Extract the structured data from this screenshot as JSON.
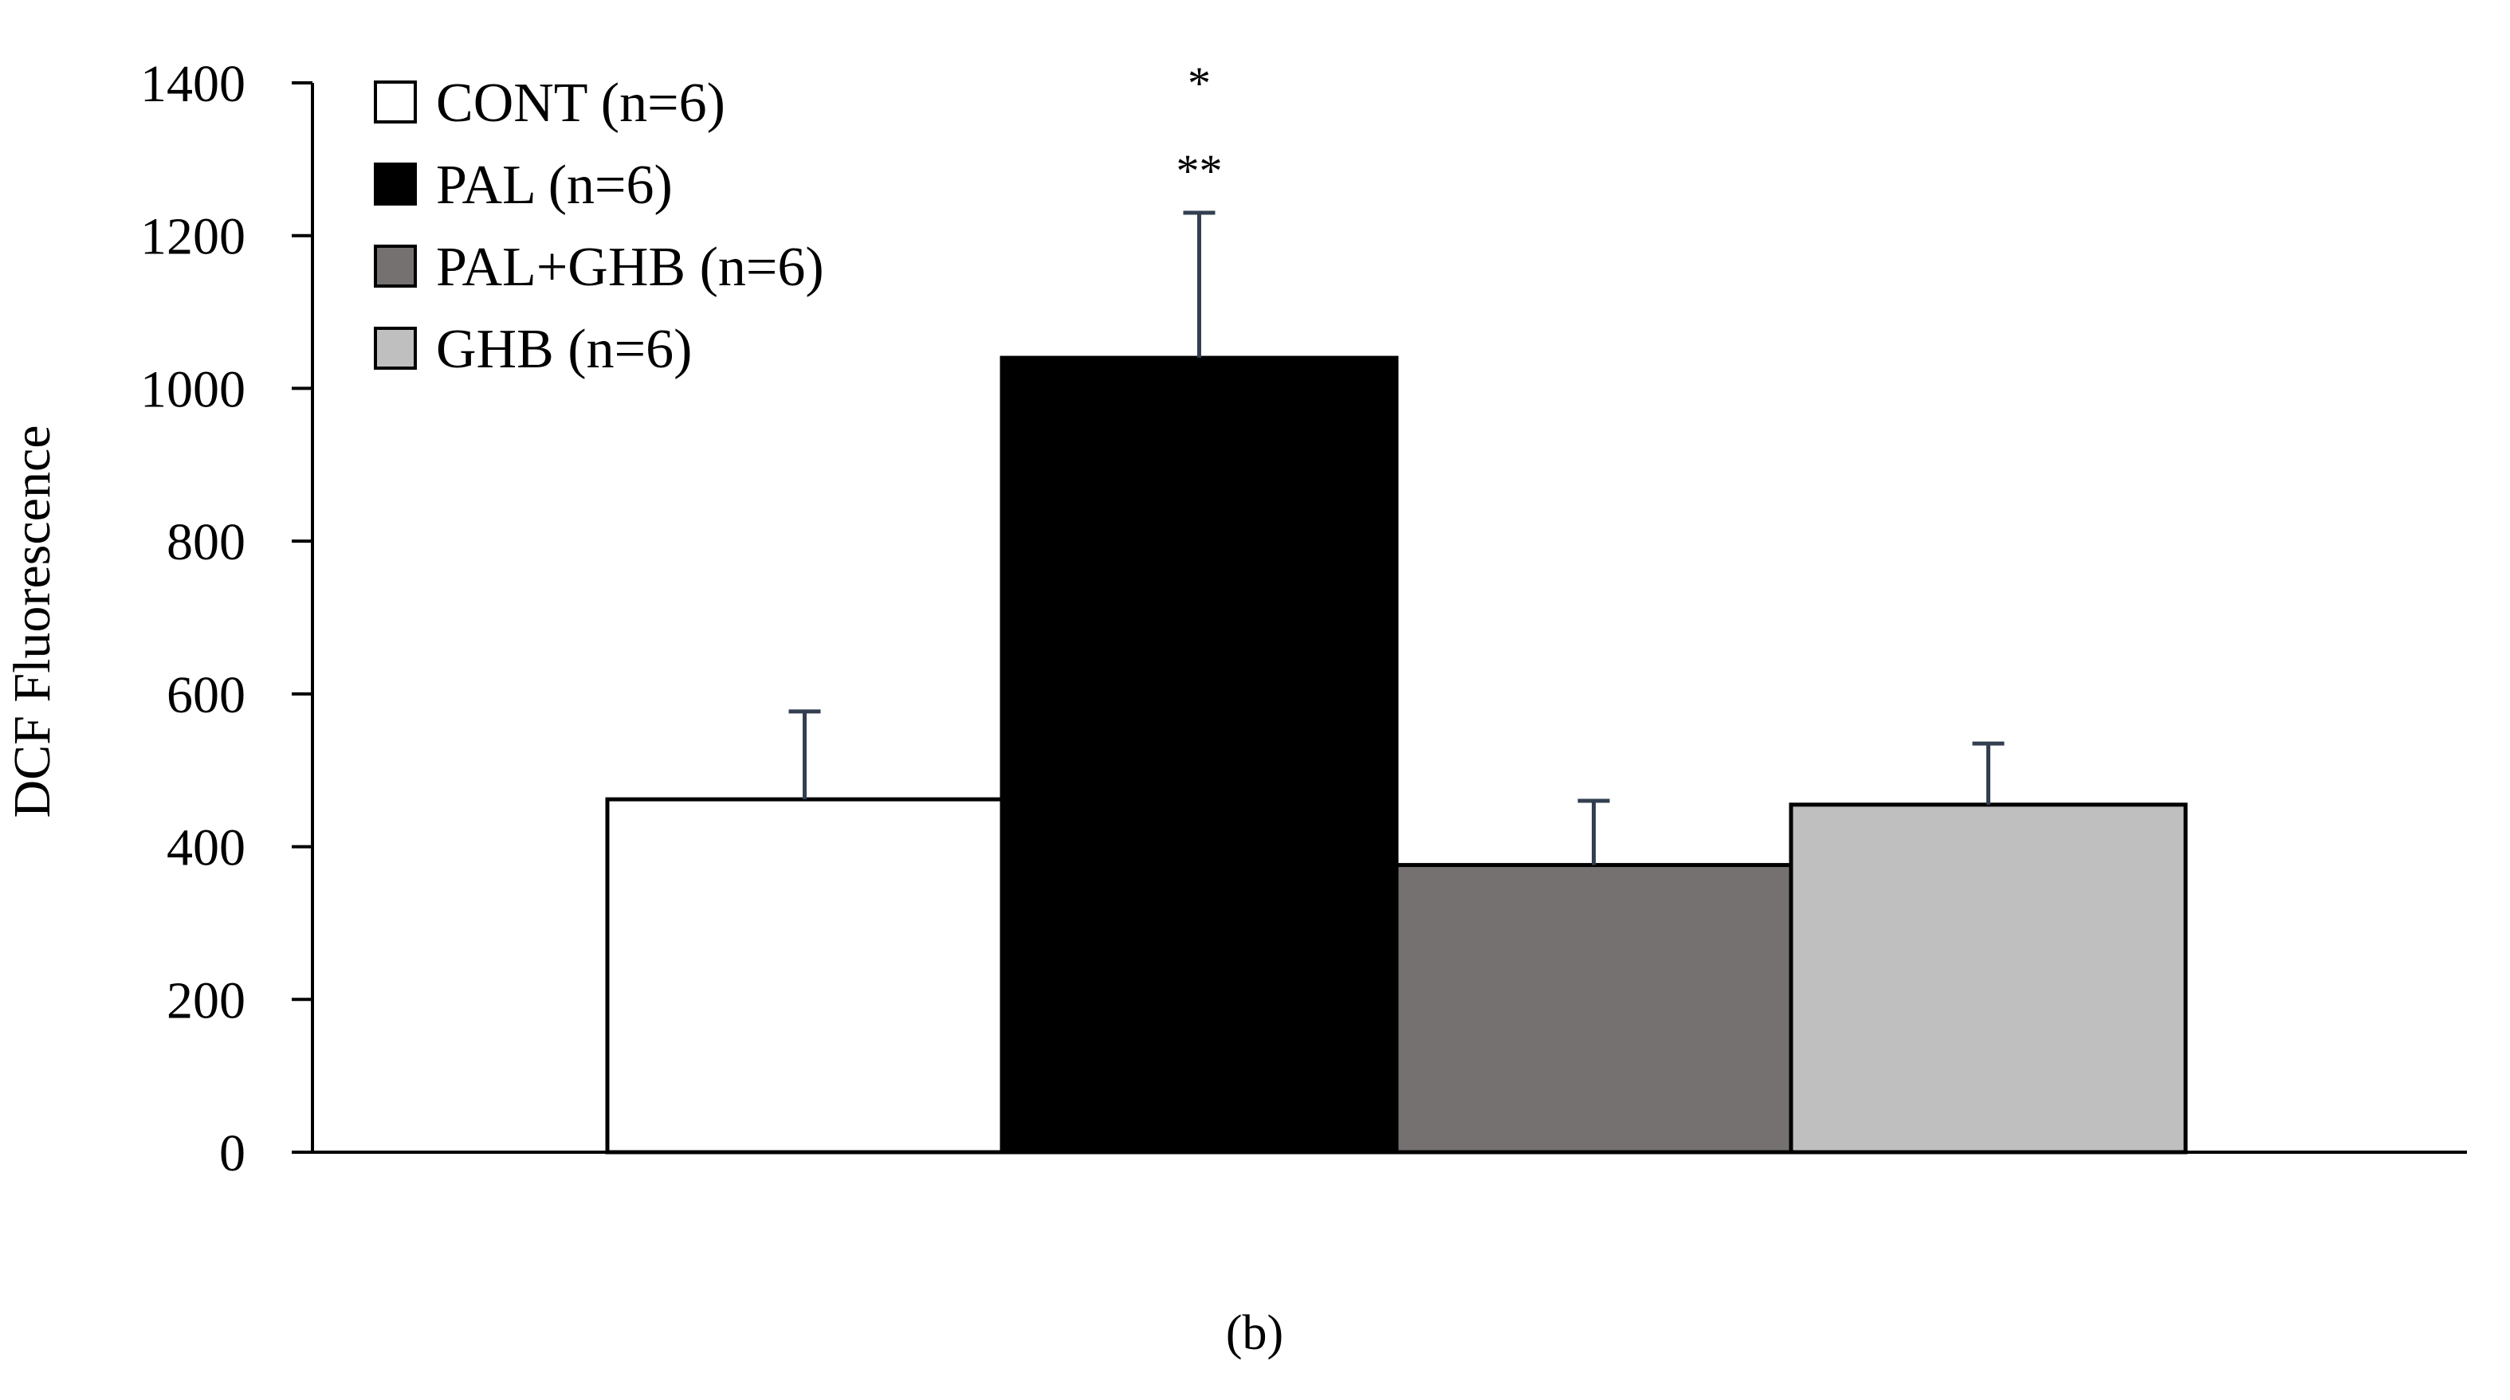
{
  "chart_data": {
    "type": "bar",
    "ylabel": "DCF Fluorescence",
    "xlabel": "",
    "ylim": [
      0,
      1400
    ],
    "yticks": [
      0,
      200,
      400,
      600,
      800,
      1000,
      1200,
      1400
    ],
    "grid": false,
    "legend_position": "top-left",
    "categories": [
      "CONT (n=6)",
      "PAL (n=6)",
      "PAL+GHB (n=6)",
      "GHB (n=6)"
    ],
    "series": [
      {
        "name": "CONT (n=6)",
        "value": 462,
        "error": 115,
        "color": "#ffffff",
        "annotation": ""
      },
      {
        "name": "PAL (n=6)",
        "value": 1040,
        "error": 190,
        "color": "#000000",
        "annotation": ""
      },
      {
        "name": "PAL+GHB (n=6)",
        "value": 376,
        "error": 84,
        "color": "#767171",
        "annotation": ""
      },
      {
        "name": "GHB (n=6)",
        "value": 455,
        "error": 80,
        "color": "#bfbfbf",
        "annotation": ""
      }
    ],
    "annotations": [
      {
        "text": "*",
        "series": "PAL (n=6)",
        "order": 1
      },
      {
        "text": "**",
        "series": "PAL (n=6)",
        "order": 2
      }
    ],
    "error_bar_color": "#333f50",
    "panel_label": "(b)"
  }
}
